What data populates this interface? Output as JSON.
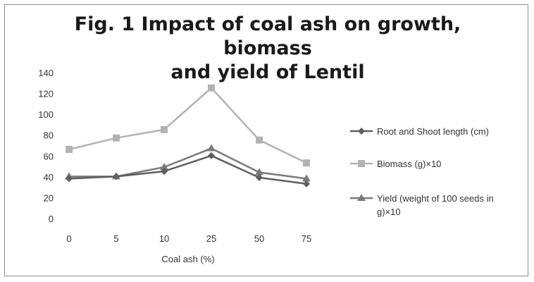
{
  "chart_data": {
    "type": "line",
    "title": "Fig. 1 Impact of coal ash on growth, biomass and yield of Lentil",
    "title_lines": [
      "Fig. 1 Impact of coal ash on growth, biomass",
      "and yield of Lentil"
    ],
    "xlabel": "Coal ash (%)",
    "ylabel": "",
    "categories": [
      "0",
      "5",
      "10",
      "25",
      "50",
      "75"
    ],
    "ylim": [
      0,
      140
    ],
    "yticks": [
      0,
      20,
      40,
      60,
      80,
      100,
      120,
      140
    ],
    "grid": false,
    "legend_position": "right",
    "series": [
      {
        "name": "Root and Shoot length (cm)",
        "legend_lines": [
          "Root and Shoot length (cm)"
        ],
        "marker": "diamond",
        "color": "#5f5f5f",
        "values": [
          39,
          41,
          46,
          61,
          40,
          34
        ]
      },
      {
        "name": "Biomass (g)×10",
        "legend_lines": [
          "Biomass (g)×10"
        ],
        "marker": "square",
        "color": "#b3b3b3",
        "values": [
          67,
          78,
          86,
          126,
          76,
          54
        ]
      },
      {
        "name": "Yield (weight of 100 seeds in g)×10",
        "legend_lines": [
          "Yield (weight of 100 seeds in",
          "g)×10"
        ],
        "marker": "triangle",
        "color": "#7a7a7a",
        "values": [
          41,
          41,
          50,
          68,
          45,
          39
        ]
      }
    ]
  }
}
